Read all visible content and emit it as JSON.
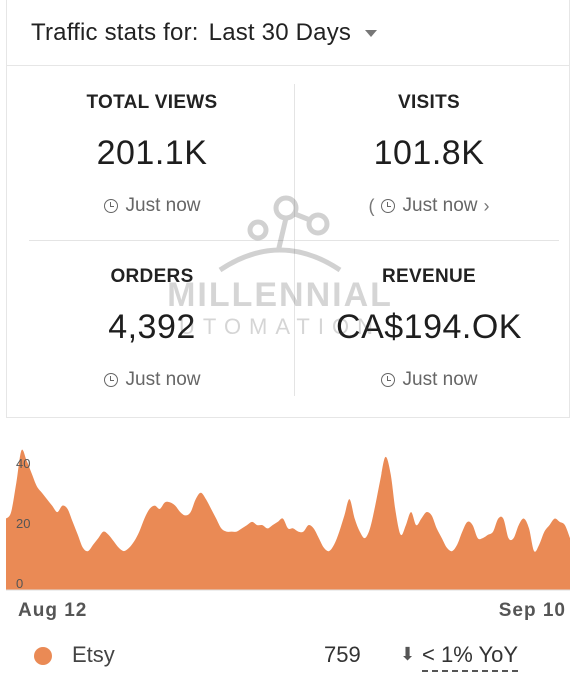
{
  "header": {
    "title": "Traffic stats for:",
    "range": "Last 30 Days"
  },
  "stats": [
    {
      "label": "TOTAL VIEWS",
      "value": "201.1K",
      "time": "Just now"
    },
    {
      "label": "VISITS",
      "value": "101.8K",
      "time": "Just now"
    },
    {
      "label": "ORDERS",
      "value": "4,392",
      "time": "Just now"
    },
    {
      "label": "REVENUE",
      "value": "CA$194.OK",
      "time": "Just now"
    }
  ],
  "watermark": {
    "line1": "MILLENNIAL",
    "line2": "UTOMATION"
  },
  "chart_data": {
    "type": "area",
    "ylim": [
      0,
      45
    ],
    "yticks": [
      "0",
      "20",
      "40"
    ],
    "x_start_label": "Aug 12",
    "x_end_label": "Sep 10",
    "series": [
      {
        "name": "Etsy",
        "color": "#ea8a55",
        "values": [
          22,
          24,
          33,
          43,
          40,
          36,
          32,
          30,
          28,
          26,
          24,
          26,
          25,
          21,
          17,
          13,
          12,
          14,
          16,
          18,
          17,
          15,
          13,
          12,
          13,
          15,
          18,
          22,
          25,
          26,
          25,
          27,
          27,
          26,
          24,
          23,
          24,
          28,
          30,
          28,
          25,
          22,
          19,
          18,
          18,
          18,
          19,
          20,
          21,
          20,
          20,
          19,
          20,
          21,
          22,
          19,
          19,
          18,
          18,
          20,
          19,
          16,
          13,
          12,
          14,
          18,
          23,
          28,
          22,
          18,
          16,
          19,
          26,
          34,
          41,
          36,
          24,
          17,
          20,
          24,
          20,
          22,
          24,
          23,
          19,
          16,
          13,
          12,
          14,
          18,
          21,
          20,
          16,
          16,
          17,
          18,
          22,
          22,
          16,
          16,
          20,
          22,
          19,
          12,
          14,
          18,
          20,
          22,
          21,
          20,
          16
        ]
      }
    ]
  },
  "legend": {
    "name": "Etsy",
    "value": "759",
    "yoy": "< 1% YoY",
    "color": "#ea8a55"
  }
}
